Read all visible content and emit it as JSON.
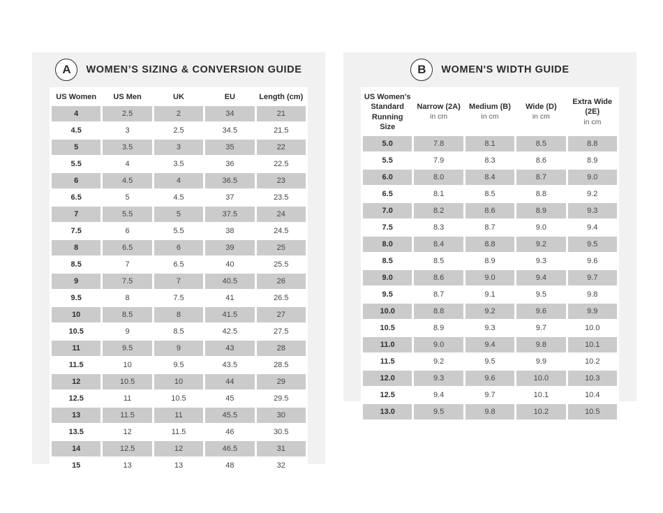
{
  "colors": {
    "page_bg": "#ffffff",
    "panel_bg": "#f1f1f1",
    "shaded_cell": "#cbcbcb",
    "text_dark": "#2b2b2b",
    "text_regular": "#454545",
    "subtext": "#5a5a5a"
  },
  "panels": [
    {
      "badge": "A",
      "title": "WOMEN’S SIZING & CONVERSION GUIDE",
      "columns": [
        {
          "label": "US Women"
        },
        {
          "label": "US Men"
        },
        {
          "label": "UK"
        },
        {
          "label": "EU"
        },
        {
          "label": "Length (cm)"
        }
      ],
      "rows": [
        [
          "4",
          "2.5",
          "2",
          "34",
          "21"
        ],
        [
          "4.5",
          "3",
          "2.5",
          "34.5",
          "21.5"
        ],
        [
          "5",
          "3.5",
          "3",
          "35",
          "22"
        ],
        [
          "5.5",
          "4",
          "3.5",
          "36",
          "22.5"
        ],
        [
          "6",
          "4.5",
          "4",
          "36.5",
          "23"
        ],
        [
          "6.5",
          "5",
          "4.5",
          "37",
          "23.5"
        ],
        [
          "7",
          "5.5",
          "5",
          "37.5",
          "24"
        ],
        [
          "7.5",
          "6",
          "5.5",
          "38",
          "24.5"
        ],
        [
          "8",
          "6.5",
          "6",
          "39",
          "25"
        ],
        [
          "8.5",
          "7",
          "6.5",
          "40",
          "25.5"
        ],
        [
          "9",
          "7.5",
          "7",
          "40.5",
          "26"
        ],
        [
          "9.5",
          "8",
          "7.5",
          "41",
          "26.5"
        ],
        [
          "10",
          "8.5",
          "8",
          "41.5",
          "27"
        ],
        [
          "10.5",
          "9",
          "8.5",
          "42.5",
          "27.5"
        ],
        [
          "11",
          "9.5",
          "9",
          "43",
          "28"
        ],
        [
          "11.5",
          "10",
          "9.5",
          "43.5",
          "28.5"
        ],
        [
          "12",
          "10.5",
          "10",
          "44",
          "29"
        ],
        [
          "12.5",
          "11",
          "10.5",
          "45",
          "29.5"
        ],
        [
          "13",
          "11.5",
          "11",
          "45.5",
          "30"
        ],
        [
          "13.5",
          "12",
          "11.5",
          "46",
          "30.5"
        ],
        [
          "14",
          "12.5",
          "12",
          "46.5",
          "31"
        ],
        [
          "15",
          "13",
          "13",
          "48",
          "32"
        ]
      ]
    },
    {
      "badge": "B",
      "title": "WOMEN'S WIDTH GUIDE",
      "columns": [
        {
          "label": "US Women's Standard Running Size"
        },
        {
          "label": "Narrow (2A)",
          "sub": "in cm"
        },
        {
          "label": "Medium (B)",
          "sub": "in cm"
        },
        {
          "label": "Wide (D)",
          "sub": "in cm"
        },
        {
          "label": "Extra Wide (2E)",
          "sub": "in cm"
        }
      ],
      "rows": [
        [
          "5.0",
          "7.8",
          "8.1",
          "8.5",
          "8.8"
        ],
        [
          "5.5",
          "7.9",
          "8.3",
          "8.6",
          "8.9"
        ],
        [
          "6.0",
          "8.0",
          "8.4",
          "8.7",
          "9.0"
        ],
        [
          "6.5",
          "8.1",
          "8.5",
          "8.8",
          "9.2"
        ],
        [
          "7.0",
          "8.2",
          "8.6",
          "8.9",
          "9.3"
        ],
        [
          "7.5",
          "8.3",
          "8.7",
          "9.0",
          "9.4"
        ],
        [
          "8.0",
          "8.4",
          "8.8",
          "9.2",
          "9.5"
        ],
        [
          "8.5",
          "8.5",
          "8.9",
          "9.3",
          "9.6"
        ],
        [
          "9.0",
          "8.6",
          "9.0",
          "9.4",
          "9.7"
        ],
        [
          "9.5",
          "8.7",
          "9.1",
          "9.5",
          "9.8"
        ],
        [
          "10.0",
          "8.8",
          "9.2",
          "9.6",
          "9.9"
        ],
        [
          "10.5",
          "8.9",
          "9.3",
          "9.7",
          "10.0"
        ],
        [
          "11.0",
          "9.0",
          "9.4",
          "9.8",
          "10.1"
        ],
        [
          "11.5",
          "9.2",
          "9.5",
          "9.9",
          "10.2"
        ],
        [
          "12.0",
          "9.3",
          "9.6",
          "10.0",
          "10.3"
        ],
        [
          "12.5",
          "9.4",
          "9.7",
          "10.1",
          "10.4"
        ],
        [
          "13.0",
          "9.5",
          "9.8",
          "10.2",
          "10.5"
        ]
      ]
    }
  ]
}
